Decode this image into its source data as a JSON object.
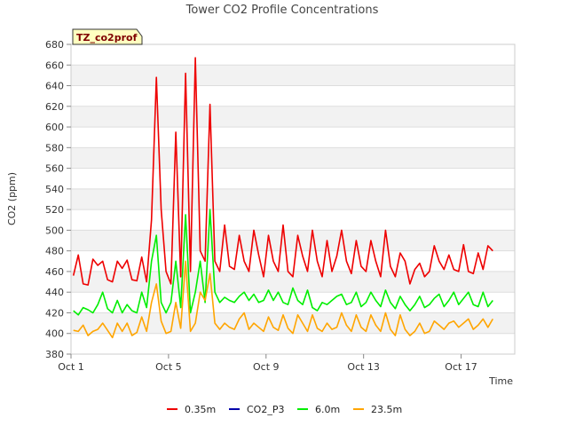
{
  "chart_data": {
    "type": "line",
    "title": "Tower CO2 Profile Concentrations",
    "tag": "TZ_co2prof",
    "xlabel": "Time",
    "ylabel": "CO2 (ppm)",
    "xlim": [
      1,
      19.2
    ],
    "ylim": [
      380,
      680
    ],
    "yticks": [
      380,
      400,
      420,
      440,
      460,
      480,
      500,
      520,
      540,
      560,
      580,
      600,
      620,
      640,
      660,
      680
    ],
    "xticks": [
      {
        "value": 1,
        "label": "Oct 1"
      },
      {
        "value": 5,
        "label": "Oct 5"
      },
      {
        "value": 9,
        "label": "Oct 9"
      },
      {
        "value": 13,
        "label": "Oct 13"
      },
      {
        "value": 17,
        "label": "Oct 17"
      }
    ],
    "series": [
      {
        "name": "0.35m",
        "color": "#ee0000",
        "x": [
          1.1,
          1.3,
          1.5,
          1.7,
          1.9,
          2.1,
          2.3,
          2.5,
          2.7,
          2.9,
          3.1,
          3.3,
          3.5,
          3.7,
          3.9,
          4.1,
          4.3,
          4.5,
          4.7,
          4.9,
          5.1,
          5.3,
          5.5,
          5.7,
          5.9,
          6.1,
          6.3,
          6.5,
          6.7,
          6.9,
          7.1,
          7.3,
          7.5,
          7.7,
          7.9,
          8.1,
          8.3,
          8.5,
          8.7,
          8.9,
          9.1,
          9.3,
          9.5,
          9.7,
          9.9,
          10.1,
          10.3,
          10.5,
          10.7,
          10.9,
          11.1,
          11.3,
          11.5,
          11.7,
          11.9,
          12.1,
          12.3,
          12.5,
          12.7,
          12.9,
          13.1,
          13.3,
          13.5,
          13.7,
          13.9,
          14.1,
          14.3,
          14.5,
          14.7,
          14.9,
          15.1,
          15.3,
          15.5,
          15.7,
          15.9,
          16.1,
          16.3,
          16.5,
          16.7,
          16.9,
          17.1,
          17.3,
          17.5,
          17.7,
          17.9,
          18.1,
          18.3
        ],
        "values": [
          456,
          476,
          448,
          447,
          472,
          466,
          470,
          452,
          450,
          470,
          463,
          471,
          452,
          451,
          474,
          450,
          510,
          648,
          520,
          460,
          448,
          595,
          455,
          652,
          460,
          667,
          480,
          470,
          622,
          470,
          460,
          505,
          465,
          462,
          495,
          470,
          460,
          500,
          476,
          455,
          495,
          470,
          460,
          505,
          460,
          455,
          495,
          475,
          460,
          500,
          470,
          455,
          490,
          460,
          475,
          500,
          470,
          458,
          490,
          465,
          460,
          490,
          470,
          455,
          500,
          465,
          455,
          478,
          470,
          448,
          462,
          468,
          455,
          460,
          485,
          470,
          462,
          476,
          462,
          460,
          486,
          460,
          458,
          478,
          462,
          485,
          480
        ]
      },
      {
        "name": "CO2_P3",
        "color": "#0000aa",
        "x": [],
        "values": []
      },
      {
        "name": "6.0m",
        "color": "#00ee00",
        "x": [
          1.1,
          1.3,
          1.5,
          1.7,
          1.9,
          2.1,
          2.3,
          2.5,
          2.7,
          2.9,
          3.1,
          3.3,
          3.5,
          3.7,
          3.9,
          4.1,
          4.3,
          4.5,
          4.7,
          4.9,
          5.1,
          5.3,
          5.5,
          5.7,
          5.9,
          6.1,
          6.3,
          6.5,
          6.7,
          6.9,
          7.1,
          7.3,
          7.5,
          7.7,
          7.9,
          8.1,
          8.3,
          8.5,
          8.7,
          8.9,
          9.1,
          9.3,
          9.5,
          9.7,
          9.9,
          10.1,
          10.3,
          10.5,
          10.7,
          10.9,
          11.1,
          11.3,
          11.5,
          11.7,
          11.9,
          12.1,
          12.3,
          12.5,
          12.7,
          12.9,
          13.1,
          13.3,
          13.5,
          13.7,
          13.9,
          14.1,
          14.3,
          14.5,
          14.7,
          14.9,
          15.1,
          15.3,
          15.5,
          15.7,
          15.9,
          16.1,
          16.3,
          16.5,
          16.7,
          16.9,
          17.1,
          17.3,
          17.5,
          17.7,
          17.9,
          18.1,
          18.3
        ],
        "values": [
          422,
          418,
          425,
          423,
          420,
          428,
          440,
          424,
          420,
          432,
          420,
          428,
          422,
          420,
          440,
          425,
          470,
          495,
          430,
          420,
          430,
          470,
          425,
          515,
          420,
          440,
          470,
          430,
          520,
          440,
          430,
          435,
          432,
          430,
          436,
          440,
          432,
          438,
          430,
          432,
          442,
          432,
          440,
          430,
          428,
          444,
          432,
          428,
          442,
          425,
          422,
          430,
          428,
          432,
          436,
          438,
          428,
          430,
          440,
          426,
          430,
          440,
          432,
          426,
          442,
          430,
          424,
          436,
          428,
          422,
          428,
          436,
          425,
          428,
          434,
          438,
          426,
          432,
          440,
          428,
          434,
          440,
          428,
          426,
          440,
          426,
          432
        ]
      },
      {
        "name": "23.5m",
        "color": "#ffa500",
        "x": [
          1.1,
          1.3,
          1.5,
          1.7,
          1.9,
          2.1,
          2.3,
          2.5,
          2.7,
          2.9,
          3.1,
          3.3,
          3.5,
          3.7,
          3.9,
          4.1,
          4.3,
          4.5,
          4.7,
          4.9,
          5.1,
          5.3,
          5.5,
          5.7,
          5.9,
          6.1,
          6.3,
          6.5,
          6.7,
          6.9,
          7.1,
          7.3,
          7.5,
          7.7,
          7.9,
          8.1,
          8.3,
          8.5,
          8.7,
          8.9,
          9.1,
          9.3,
          9.5,
          9.7,
          9.9,
          10.1,
          10.3,
          10.5,
          10.7,
          10.9,
          11.1,
          11.3,
          11.5,
          11.7,
          11.9,
          12.1,
          12.3,
          12.5,
          12.7,
          12.9,
          13.1,
          13.3,
          13.5,
          13.7,
          13.9,
          14.1,
          14.3,
          14.5,
          14.7,
          14.9,
          15.1,
          15.3,
          15.5,
          15.7,
          15.9,
          16.1,
          16.3,
          16.5,
          16.7,
          16.9,
          17.1,
          17.3,
          17.5,
          17.7,
          17.9,
          18.1,
          18.3
        ],
        "values": [
          403,
          402,
          408,
          398,
          402,
          404,
          410,
          403,
          396,
          410,
          402,
          410,
          398,
          401,
          416,
          402,
          430,
          448,
          412,
          400,
          402,
          430,
          405,
          470,
          402,
          410,
          440,
          432,
          458,
          410,
          404,
          410,
          406,
          404,
          414,
          420,
          404,
          410,
          406,
          402,
          416,
          406,
          403,
          418,
          405,
          400,
          418,
          410,
          402,
          418,
          405,
          402,
          410,
          404,
          406,
          420,
          408,
          402,
          418,
          406,
          402,
          418,
          408,
          402,
          420,
          404,
          398,
          418,
          404,
          398,
          402,
          410,
          400,
          402,
          412,
          408,
          404,
          410,
          412,
          406,
          410,
          414,
          404,
          408,
          414,
          406,
          414
        ]
      }
    ]
  }
}
